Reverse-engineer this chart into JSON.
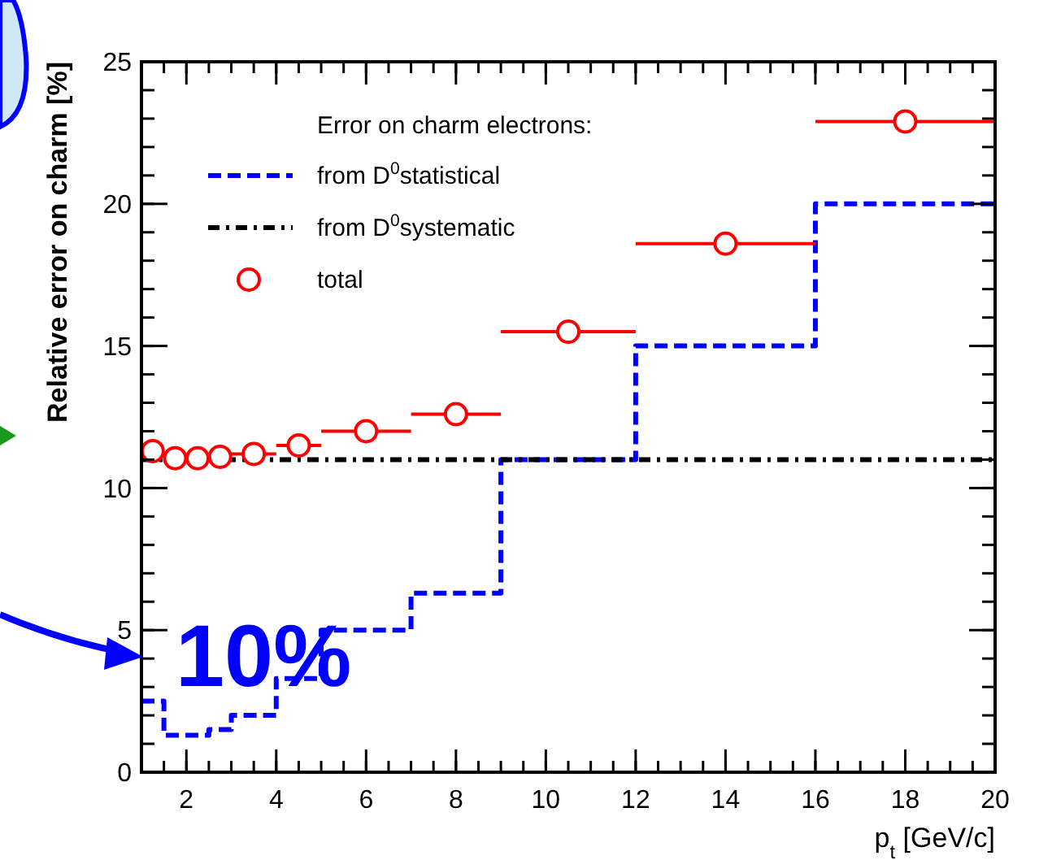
{
  "chart_data": {
    "type": "line",
    "xlabel": "p$_{t}$ [GeV/c]",
    "ylabel": "Relative error on charm [%]",
    "legend_title": "Error on charm electrons:",
    "xlim": [
      1,
      20
    ],
    "ylim": [
      0,
      25
    ],
    "xticks": [
      2,
      4,
      6,
      8,
      10,
      12,
      14,
      16,
      18,
      20
    ],
    "yticks": [
      0,
      5,
      10,
      15,
      20,
      25
    ],
    "grid": false,
    "legend": "top left",
    "series": [
      {
        "name": "from D$^{0}$statistical",
        "type": "step",
        "color": "#0000ff",
        "line_style": "dashed",
        "x": [
          1,
          1.5,
          2.5,
          3,
          4,
          5,
          7,
          9,
          12,
          16,
          20
        ],
        "values": [
          2.5,
          1.3,
          1.5,
          2.0,
          3.3,
          5.0,
          6.3,
          11,
          15,
          20,
          20
        ]
      },
      {
        "name": "from D$^{0}$systematic",
        "color": "#000000",
        "line_style": "dotted",
        "x": [
          1,
          20
        ],
        "values": [
          11,
          11
        ]
      },
      {
        "name": "total",
        "type": "scatter",
        "color": "#ff0000",
        "marker": "circle",
        "x": [
          1.25,
          1.75,
          2.25,
          2.75,
          3.5,
          4.5,
          6,
          8,
          10.5,
          14,
          18
        ],
        "values": [
          11.3,
          11.05,
          11.05,
          11.1,
          11.2,
          11.5,
          12.0,
          12.6,
          15.5,
          18.6,
          22.9
        ],
        "xerrors": [
          0.25,
          0.25,
          0.25,
          0.25,
          0.5,
          0.5,
          1,
          1,
          1.5,
          2,
          2
        ]
      }
    ],
    "annotations": [
      "10%"
    ]
  }
}
